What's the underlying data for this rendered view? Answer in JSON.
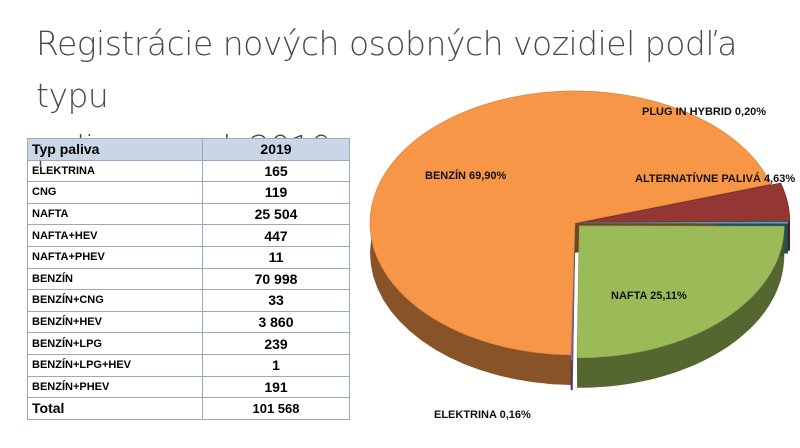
{
  "title": {
    "line1": "Registrácie nových osobných vozidiel podľa typu",
    "line2": "paliva za rok 2019"
  },
  "table": {
    "header": {
      "name": "Typ paliva",
      "value": "2019"
    },
    "rows": [
      {
        "name": "ELEKTRINA",
        "value": "165"
      },
      {
        "name": "CNG",
        "value": "119"
      },
      {
        "name": "NAFTA",
        "value": "25 504"
      },
      {
        "name": "NAFTA+HEV",
        "value": "447"
      },
      {
        "name": "NAFTA+PHEV",
        "value": "11"
      },
      {
        "name": "BENZÍN",
        "value": "70 998"
      },
      {
        "name": "BENZÍN+CNG",
        "value": "33"
      },
      {
        "name": "BENZÍN+HEV",
        "value": "3 860"
      },
      {
        "name": "BENZÍN+LPG",
        "value": "239"
      },
      {
        "name": "BENZÍN+LPG+HEV",
        "value": "1"
      },
      {
        "name": "BENZÍN+PHEV",
        "value": "191"
      }
    ],
    "total": {
      "name": "Total",
      "value": "101 568"
    }
  },
  "chart_data": {
    "type": "pie",
    "style": "3d-exploded",
    "slices": [
      {
        "label": "BENZÍN",
        "value": 69.9,
        "display": "BENZÍN 69,90%",
        "color": "#f79646"
      },
      {
        "label": "NAFTA",
        "value": 25.11,
        "display": "NAFTA 25,11%",
        "color": "#9bbb59"
      },
      {
        "label": "ELEKTRINA",
        "value": 0.16,
        "display": "ELEKTRINA 0,16%",
        "color": "#8064a2"
      },
      {
        "label": "PLUG IN HYBRID",
        "value": 0.2,
        "display": "PLUG IN  HYBRID  0,20%",
        "color": "#4bacc6"
      },
      {
        "label": "ALTERNATÍVNE PALIVÁ",
        "value": 4.63,
        "display": "ALTERNATÍVNE PALIVÁ  4,63%",
        "color": "#943634"
      }
    ]
  }
}
